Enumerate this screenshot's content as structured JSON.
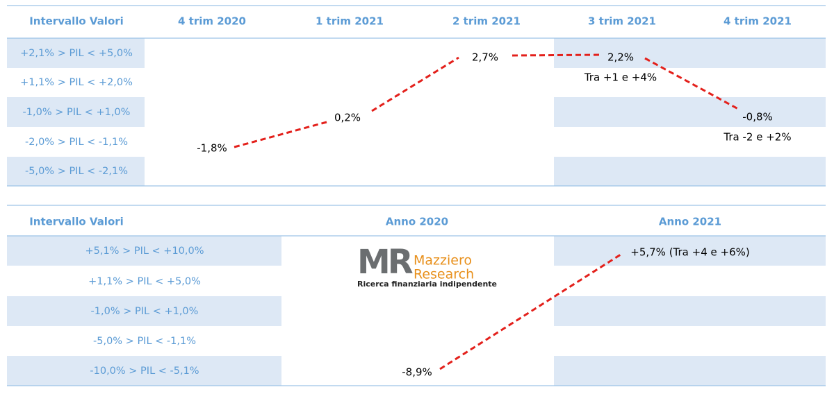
{
  "top_table": {
    "header": [
      "Intervallo Valori",
      "4 trim 2020",
      "1 trim 2021",
      "2 trim 2021",
      "3 trim 2021",
      "4 trim 2021"
    ],
    "row_labels": [
      "+2,1% > PIL < +5,0%",
      "+1,1% > PIL < +2,0%",
      "-1,0% > PIL < +1,0%",
      "-2,0% > PIL < -1,1%",
      "-5,0% > PIL < -2,1%"
    ],
    "values": [
      "-1,8%",
      "0,2%",
      "2,7%",
      "2,2%",
      "-0,8%"
    ],
    "notes": [
      "Tra +1 e +4%",
      "Tra -2 e +2%"
    ]
  },
  "bottom_table": {
    "header": [
      "Intervallo Valori",
      "Anno 2020",
      "Anno 2021"
    ],
    "row_labels": [
      "+5,1% > PIL < +10,0%",
      "+1,1% > PIL < +5,0%",
      "-1,0% > PIL < +1,0%",
      "-5,0% > PIL < -1,1%",
      "-10,0% > PIL < -5,1%"
    ],
    "values": [
      "-8,9%",
      "+5,7% (Tra +4 e +6%)"
    ]
  },
  "logo": {
    "mark": "MR",
    "name_line1": "Mazziero",
    "name_line2": "Research",
    "tagline": "Ricerca finanziaria indipendente"
  }
}
